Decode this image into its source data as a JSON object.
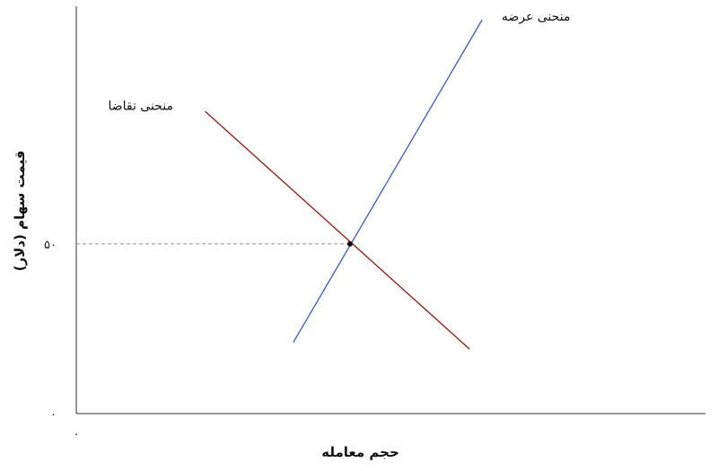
{
  "chart_data": {
    "type": "line",
    "xlabel": "حجم معامله",
    "ylabel": "قیمت سهام (دلار)",
    "x_origin_label": "۰",
    "y_ticks": [
      {
        "value": 0,
        "label": "۰"
      },
      {
        "value": 50,
        "label": "۵۰"
      }
    ],
    "xlim": [
      0,
      100
    ],
    "ylim": [
      0,
      120
    ],
    "grid": false,
    "series": [
      {
        "name": "منحنی عرضه",
        "color": "#3a5bbf",
        "x": [
          34.5,
          64.5
        ],
        "y": [
          21,
          116
        ]
      },
      {
        "name": "منحنی تقاضا",
        "color": "#8b1a0f",
        "x": [
          20.5,
          62.5
        ],
        "y": [
          89,
          19
        ]
      }
    ],
    "equilibrium": {
      "x": 43.5,
      "y": 50,
      "color": "#111111"
    }
  }
}
